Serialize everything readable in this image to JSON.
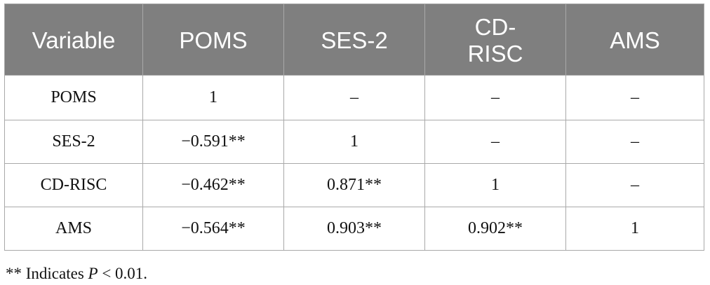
{
  "table": {
    "headers": [
      "Variable",
      "POMS",
      "SES-2",
      "CD-\nRISC",
      "AMS"
    ],
    "rows": [
      {
        "label": "POMS",
        "cells": [
          "1",
          "–",
          "–",
          "–"
        ]
      },
      {
        "label": "SES-2",
        "cells": [
          "−0.591**",
          "1",
          "–",
          "–"
        ]
      },
      {
        "label": "CD-RISC",
        "cells": [
          "−0.462**",
          "0.871**",
          "1",
          "–"
        ]
      },
      {
        "label": "AMS",
        "cells": [
          "−0.564**",
          "0.903**",
          "0.902**",
          "1"
        ]
      }
    ]
  },
  "footnote": {
    "prefix": "** Indicates ",
    "symbol": "P",
    "suffix": " < 0.01."
  },
  "colors": {
    "header_bg": "#7f7f7f",
    "border": "#a9a9a9"
  }
}
